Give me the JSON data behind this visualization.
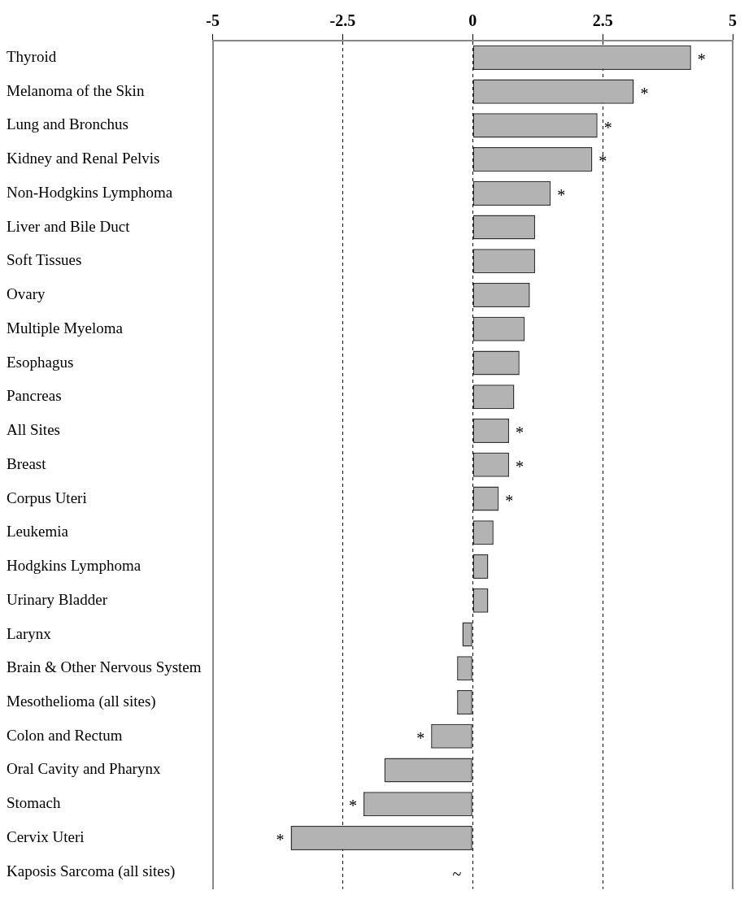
{
  "chart_data": {
    "type": "bar",
    "orientation": "horizontal",
    "categories": [
      "Thyroid",
      "Melanoma of the Skin",
      "Lung and Bronchus",
      "Kidney and Renal Pelvis",
      "Non-Hodgkins Lymphoma",
      "Liver and Bile Duct",
      "Soft Tissues",
      "Ovary",
      "Multiple Myeloma",
      "Esophagus",
      "Pancreas",
      "All Sites",
      "Breast",
      "Corpus Uteri",
      "Leukemia",
      "Hodgkins Lymphoma",
      "Urinary Bladder",
      "Larynx",
      "Brain & Other Nervous System",
      "Mesothelioma (all sites)",
      "Colon and Rectum",
      "Oral Cavity and Pharynx",
      "Stomach",
      "Cervix Uteri",
      "Kaposis Sarcoma (all sites)"
    ],
    "values": [
      4.2,
      3.1,
      2.4,
      2.3,
      1.5,
      1.2,
      1.2,
      1.1,
      1.0,
      0.9,
      0.8,
      0.7,
      0.7,
      0.5,
      0.4,
      0.3,
      0.3,
      -0.2,
      -0.3,
      -0.3,
      -0.8,
      -1.7,
      -2.1,
      -3.5,
      null
    ],
    "value_labels": [
      "*",
      "*",
      "*",
      "*",
      "*",
      null,
      null,
      null,
      null,
      null,
      null,
      "*",
      "*",
      "*",
      null,
      null,
      null,
      null,
      null,
      null,
      "*",
      null,
      "*",
      "*",
      "~"
    ],
    "color": "#b3b3b3",
    "xlim": [
      -5,
      5
    ],
    "xticks": [
      -5,
      -2.5,
      0,
      2.5,
      5
    ],
    "grid": "x"
  }
}
